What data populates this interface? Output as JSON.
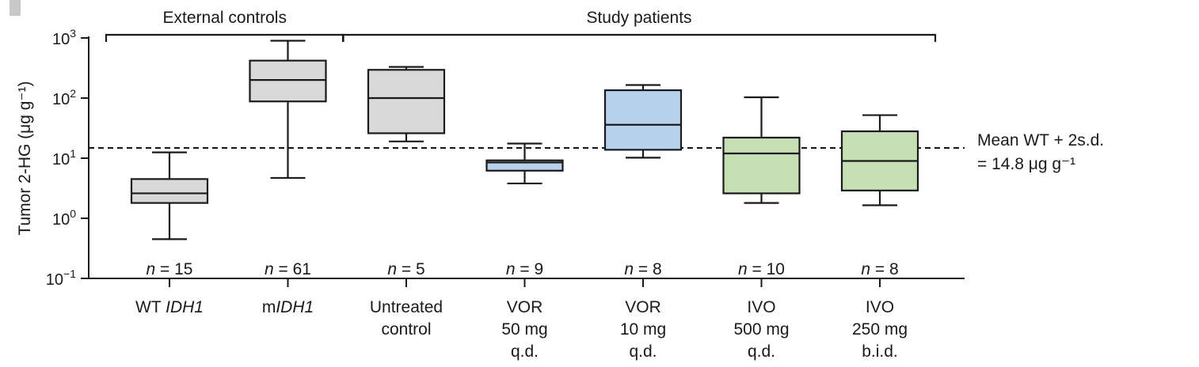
{
  "chart_data": {
    "type": "box",
    "panel_marker_color": "#c8c8c8",
    "ylabel": "Tumor 2-HG (μg g⁻¹)",
    "yscale": "log",
    "ylim": [
      0.1,
      1000
    ],
    "y_ticks": [
      {
        "value": 0.1,
        "base": "10",
        "exp": "−1"
      },
      {
        "value": 1,
        "base": "10",
        "exp": "0"
      },
      {
        "value": 10,
        "base": "10",
        "exp": "1"
      },
      {
        "value": 100,
        "base": "10",
        "exp": "2"
      },
      {
        "value": 1000,
        "base": "10",
        "exp": "3"
      }
    ],
    "groups": [
      {
        "label": "External controls",
        "from": 0,
        "to": 1
      },
      {
        "label": "Study patients",
        "from": 2,
        "to": 6
      }
    ],
    "reference_line": {
      "value": 14.8,
      "style": "dashed",
      "label_line1": "Mean WT + 2s.d.",
      "label_line2": "= 14.8 μg g⁻¹"
    },
    "categories": [
      {
        "name": [
          "WT IDH1"
        ],
        "italic_part": "IDH1",
        "n_text": "= 15",
        "color": "#d9d9d9",
        "whisker_low": 0.45,
        "q1": 1.8,
        "median": 2.6,
        "q3": 4.5,
        "whisker_high": 12.5
      },
      {
        "name": [
          "mIDH1"
        ],
        "italic_part": "IDH1",
        "n_text": "= 61",
        "color": "#d9d9d9",
        "whisker_low": 4.7,
        "q1": 88,
        "median": 200,
        "q3": 420,
        "whisker_high": 900
      },
      {
        "name": [
          "Untreated",
          "control"
        ],
        "n_text": "= 5",
        "color": "#d9d9d9",
        "whisker_low": 19,
        "q1": 26,
        "median": 100,
        "q3": 295,
        "whisker_high": 330
      },
      {
        "name": [
          "VOR",
          "50 mg",
          "q.d."
        ],
        "n_text": "= 9",
        "color": "#b8d1ec",
        "whisker_low": 3.8,
        "q1": 6.2,
        "median": 8.5,
        "q3": 9.2,
        "whisker_high": 17.5
      },
      {
        "name": [
          "VOR",
          "10 mg",
          "q.d."
        ],
        "n_text": "= 8",
        "color": "#b8d1ec",
        "whisker_low": 10.2,
        "q1": 13.8,
        "median": 36,
        "q3": 135,
        "whisker_high": 165
      },
      {
        "name": [
          "IVO",
          "500 mg",
          "q.d."
        ],
        "n_text": "= 10",
        "color": "#c6dfb3",
        "whisker_low": 1.8,
        "q1": 2.6,
        "median": 12,
        "q3": 22,
        "whisker_high": 103
      },
      {
        "name": [
          "IVO",
          "250 mg",
          "b.i.d."
        ],
        "n_text": "= 8",
        "color": "#c6dfb3",
        "whisker_low": 1.65,
        "q1": 2.9,
        "median": 9,
        "q3": 28,
        "whisker_high": 52
      }
    ],
    "n_prefix": "n"
  }
}
